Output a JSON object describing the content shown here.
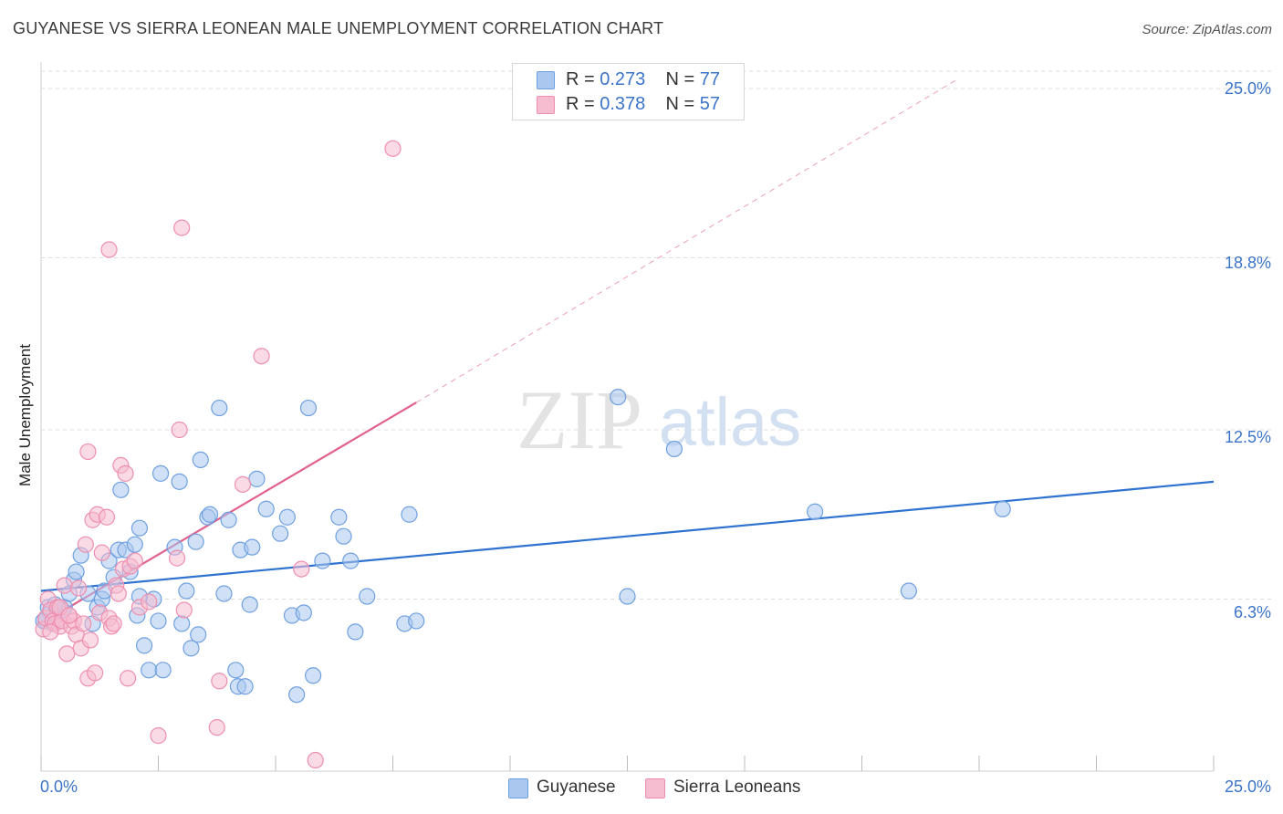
{
  "chart_data": {
    "type": "scatter",
    "title": "GUYANESE VS SIERRA LEONEAN MALE UNEMPLOYMENT CORRELATION CHART",
    "source": "Source: ZipAtlas.com",
    "xlabel": "",
    "ylabel": "Male Unemployment",
    "xlim": [
      0,
      25
    ],
    "ylim": [
      0,
      25.7
    ],
    "x_tick_labels": [
      "0.0%",
      "25.0%"
    ],
    "y_tick_labels": [
      {
        "value": 25.0,
        "label": "25.0%"
      },
      {
        "value": 18.8,
        "label": "18.8%"
      },
      {
        "value": 12.5,
        "label": "12.5%"
      },
      {
        "value": 6.3,
        "label": "6.3%"
      }
    ],
    "watermark": {
      "zip": "ZIP",
      "atlas": "atlas"
    },
    "legend": [
      {
        "name": "Guyanese",
        "r_label": "R = ",
        "r": "0.273",
        "n_label": "N = ",
        "n": "77"
      },
      {
        "name": "Sierra Leoneans",
        "r_label": "R = ",
        "r": "0.378",
        "n_label": "N = ",
        "n": "57"
      }
    ],
    "series": [
      {
        "name": "Guyanese",
        "color": "#6fa0e0",
        "fill": "#a9c7ef",
        "trend": {
          "x0": 0,
          "y0": 6.6,
          "x1": 25,
          "y1": 10.6,
          "color": "#2f72d0",
          "dashed_from": null
        },
        "points": [
          [
            0.1,
            5.5
          ],
          [
            0.15,
            6.0
          ],
          [
            0.2,
            5.8
          ],
          [
            0.25,
            5.4
          ],
          [
            0.35,
            5.7
          ],
          [
            0.45,
            5.9
          ],
          [
            0.5,
            6.0
          ],
          [
            0.6,
            6.5
          ],
          [
            0.7,
            7.0
          ],
          [
            0.75,
            7.3
          ],
          [
            0.85,
            7.9
          ],
          [
            1.0,
            6.5
          ],
          [
            1.1,
            5.4
          ],
          [
            1.2,
            6.0
          ],
          [
            1.3,
            6.3
          ],
          [
            1.45,
            7.7
          ],
          [
            1.55,
            7.1
          ],
          [
            1.65,
            8.1
          ],
          [
            1.7,
            10.3
          ],
          [
            1.8,
            8.1
          ],
          [
            1.9,
            7.3
          ],
          [
            2.0,
            8.3
          ],
          [
            2.05,
            5.7
          ],
          [
            2.1,
            8.9
          ],
          [
            2.2,
            4.6
          ],
          [
            2.3,
            3.7
          ],
          [
            2.4,
            6.3
          ],
          [
            2.5,
            5.5
          ],
          [
            2.55,
            10.9
          ],
          [
            2.6,
            3.7
          ],
          [
            2.85,
            8.2
          ],
          [
            2.95,
            10.6
          ],
          [
            3.0,
            5.4
          ],
          [
            3.1,
            6.6
          ],
          [
            3.2,
            4.5
          ],
          [
            3.3,
            8.4
          ],
          [
            3.35,
            5.0
          ],
          [
            3.4,
            11.4
          ],
          [
            3.55,
            9.3
          ],
          [
            3.6,
            9.4
          ],
          [
            3.8,
            13.3
          ],
          [
            3.9,
            6.5
          ],
          [
            4.0,
            9.2
          ],
          [
            4.15,
            3.7
          ],
          [
            4.2,
            3.1
          ],
          [
            4.25,
            8.1
          ],
          [
            4.35,
            3.1
          ],
          [
            4.45,
            6.1
          ],
          [
            4.5,
            8.2
          ],
          [
            4.6,
            10.7
          ],
          [
            4.8,
            9.6
          ],
          [
            5.1,
            8.7
          ],
          [
            5.25,
            9.3
          ],
          [
            5.35,
            5.7
          ],
          [
            5.45,
            2.8
          ],
          [
            5.6,
            5.8
          ],
          [
            5.7,
            13.3
          ],
          [
            5.8,
            3.5
          ],
          [
            6.0,
            7.7
          ],
          [
            6.35,
            9.3
          ],
          [
            6.45,
            8.6
          ],
          [
            6.6,
            7.7
          ],
          [
            6.7,
            5.1
          ],
          [
            6.95,
            6.4
          ],
          [
            7.75,
            5.4
          ],
          [
            7.85,
            9.4
          ],
          [
            8.0,
            5.5
          ],
          [
            12.3,
            13.7
          ],
          [
            12.5,
            6.4
          ],
          [
            13.5,
            11.8
          ],
          [
            16.5,
            9.5
          ],
          [
            18.5,
            6.6
          ],
          [
            20.5,
            9.6
          ],
          [
            0.05,
            5.5
          ],
          [
            0.3,
            6.1
          ],
          [
            1.35,
            6.6
          ],
          [
            2.1,
            6.4
          ]
        ]
      },
      {
        "name": "Sierra Leoneans",
        "color": "#ee8fb0",
        "fill": "#f6bcd0",
        "trend": {
          "x0": 0,
          "y0": 5.4,
          "x1": 8.0,
          "y1": 13.5,
          "x2": 19.5,
          "y2": 25.3,
          "color": "#e0608e",
          "dashed_from": 8.0
        },
        "points": [
          [
            0.05,
            5.2
          ],
          [
            0.1,
            5.6
          ],
          [
            0.15,
            6.3
          ],
          [
            0.2,
            5.9
          ],
          [
            0.25,
            5.5
          ],
          [
            0.3,
            5.4
          ],
          [
            0.35,
            6.0
          ],
          [
            0.4,
            5.3
          ],
          [
            0.45,
            5.5
          ],
          [
            0.5,
            6.8
          ],
          [
            0.55,
            4.3
          ],
          [
            0.6,
            5.7
          ],
          [
            0.65,
            5.3
          ],
          [
            0.7,
            5.5
          ],
          [
            0.75,
            5.0
          ],
          [
            0.8,
            6.7
          ],
          [
            0.85,
            4.5
          ],
          [
            0.9,
            5.4
          ],
          [
            0.95,
            8.3
          ],
          [
            1.0,
            3.4
          ],
          [
            1.05,
            4.8
          ],
          [
            1.1,
            9.2
          ],
          [
            1.15,
            3.6
          ],
          [
            1.2,
            9.4
          ],
          [
            1.25,
            5.8
          ],
          [
            1.3,
            8.0
          ],
          [
            1.4,
            9.3
          ],
          [
            1.45,
            5.6
          ],
          [
            1.5,
            5.3
          ],
          [
            1.55,
            5.4
          ],
          [
            1.6,
            6.8
          ],
          [
            1.65,
            6.5
          ],
          [
            1.7,
            11.2
          ],
          [
            1.75,
            7.4
          ],
          [
            1.8,
            10.9
          ],
          [
            1.85,
            3.4
          ],
          [
            1.9,
            7.5
          ],
          [
            2.0,
            7.7
          ],
          [
            2.1,
            6.0
          ],
          [
            2.3,
            6.2
          ],
          [
            2.5,
            1.3
          ],
          [
            2.9,
            7.8
          ],
          [
            2.95,
            12.5
          ],
          [
            3.0,
            19.9
          ],
          [
            3.05,
            5.9
          ],
          [
            3.75,
            1.6
          ],
          [
            3.8,
            3.3
          ],
          [
            4.3,
            10.5
          ],
          [
            4.7,
            15.2
          ],
          [
            5.55,
            7.4
          ],
          [
            5.85,
            0.4
          ],
          [
            7.5,
            22.8
          ],
          [
            1.45,
            19.1
          ],
          [
            1.0,
            11.7
          ],
          [
            0.4,
            6.0
          ],
          [
            0.2,
            5.1
          ],
          [
            0.6,
            5.7
          ]
        ]
      }
    ]
  }
}
